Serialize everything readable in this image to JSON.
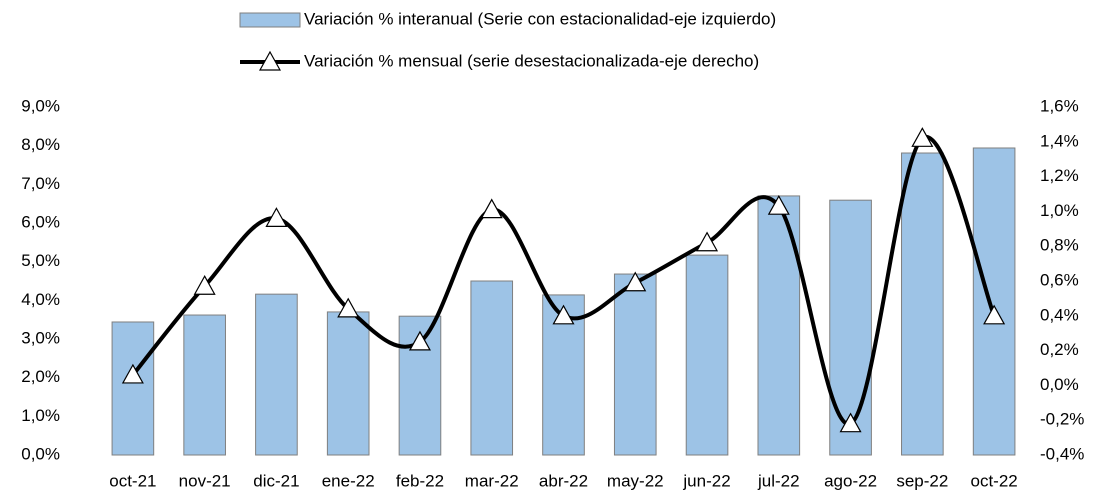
{
  "chart_data": {
    "type": "bar_line",
    "categories": [
      "oct-21",
      "nov-21",
      "dic-21",
      "ene-22",
      "feb-22",
      "mar-22",
      "abr-22",
      "may-22",
      "jun-22",
      "jul-22",
      "ago-22",
      "sep-22",
      "oct-22"
    ],
    "series": [
      {
        "name": "Variación % interanual (Serie con estacionalidad-eje izquierdo)",
        "type": "bar",
        "color": "#9dc3e6",
        "axis": "y",
        "values": [
          3.44,
          3.62,
          4.16,
          3.7,
          3.59,
          4.5,
          4.14,
          4.68,
          5.17,
          6.7,
          6.59,
          7.81,
          7.94
        ]
      },
      {
        "name": "Variación % mensual (serie desestacionalizada-eje derecho)",
        "type": "line",
        "color": "#000000",
        "axis": "y2",
        "values": [
          0.06,
          0.57,
          0.96,
          0.44,
          0.25,
          1.01,
          0.4,
          0.59,
          0.82,
          1.03,
          -0.22,
          1.42,
          0.4
        ]
      }
    ],
    "ylim": [
      0,
      9
    ],
    "yticks": [
      {
        "value": 0,
        "label": "0,0%"
      },
      {
        "value": 1,
        "label": "1,0%"
      },
      {
        "value": 2,
        "label": "2,0%"
      },
      {
        "value": 3,
        "label": "3,0%"
      },
      {
        "value": 4,
        "label": "4,0%"
      },
      {
        "value": 5,
        "label": "5,0%"
      },
      {
        "value": 6,
        "label": "6,0%"
      },
      {
        "value": 7,
        "label": "7,0%"
      },
      {
        "value": 8,
        "label": "8,0%"
      },
      {
        "value": 9,
        "label": "9,0%"
      }
    ],
    "y2lim": [
      -0.4,
      1.6
    ],
    "y2ticks": [
      {
        "value": -0.4,
        "label": "-0,4%"
      },
      {
        "value": -0.2,
        "label": "-0,2%"
      },
      {
        "value": 0,
        "label": "0,0%"
      },
      {
        "value": 0.2,
        "label": "0,2%"
      },
      {
        "value": 0.4,
        "label": "0,4%"
      },
      {
        "value": 0.6,
        "label": "0,6%"
      },
      {
        "value": 0.8,
        "label": "0,8%"
      },
      {
        "value": 1.0,
        "label": "1,0%"
      },
      {
        "value": 1.2,
        "label": "1,2%"
      },
      {
        "value": 1.4,
        "label": "1,4%"
      },
      {
        "value": 1.6,
        "label": "1,6%"
      }
    ],
    "legend": "top",
    "grid": false
  }
}
